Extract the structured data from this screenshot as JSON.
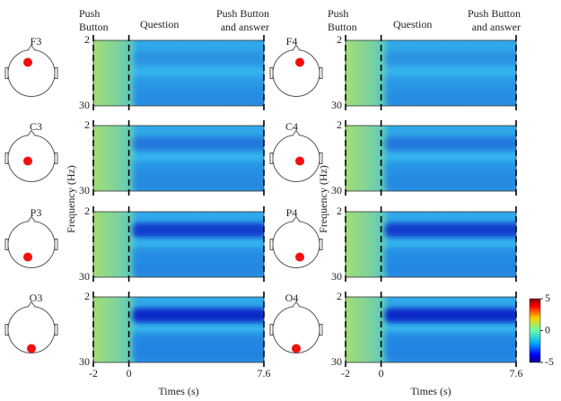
{
  "events": [
    {
      "label_lines": [
        "Push",
        "Button"
      ],
      "x": -2
    },
    {
      "label_lines": [
        "Question"
      ],
      "x": 0
    },
    {
      "label_lines": [
        "Push Button",
        "and answer"
      ],
      "x": 7.6
    }
  ],
  "ylabel": "Frequency (Hz)",
  "xlabel": "Times (s)",
  "colorbar": {
    "lim": [
      -5,
      5
    ],
    "ticks": [
      5,
      0,
      -5
    ]
  },
  "chart_data": [
    {
      "type": "heatmap",
      "channel": "F3",
      "xlim": [
        -2,
        7.6
      ],
      "ylim": [
        2,
        30
      ],
      "yticks": [
        2,
        30
      ],
      "y_inverted": true
    },
    {
      "type": "heatmap",
      "channel": "C3",
      "xlim": [
        -2,
        7.6
      ],
      "ylim": [
        2,
        30
      ],
      "yticks": [
        2,
        30
      ],
      "y_inverted": true
    },
    {
      "type": "heatmap",
      "channel": "P3",
      "xlim": [
        -2,
        7.6
      ],
      "ylim": [
        2,
        30
      ],
      "yticks": [
        2,
        30
      ],
      "y_inverted": true
    },
    {
      "type": "heatmap",
      "channel": "O3",
      "xlim": [
        -2,
        7.6
      ],
      "ylim": [
        2,
        30
      ],
      "yticks": [
        2,
        30
      ],
      "y_inverted": true,
      "xticks": [
        -2,
        0,
        7.6
      ]
    },
    {
      "type": "heatmap",
      "channel": "F4",
      "xlim": [
        -2,
        7.6
      ],
      "ylim": [
        2,
        30
      ],
      "yticks": [
        2,
        30
      ],
      "y_inverted": true
    },
    {
      "type": "heatmap",
      "channel": "C4",
      "xlim": [
        -2,
        7.6
      ],
      "ylim": [
        2,
        30
      ],
      "yticks": [
        2,
        30
      ],
      "y_inverted": true
    },
    {
      "type": "heatmap",
      "channel": "P4",
      "xlim": [
        -2,
        7.6
      ],
      "ylim": [
        2,
        30
      ],
      "yticks": [
        2,
        30
      ],
      "y_inverted": true
    },
    {
      "type": "heatmap",
      "channel": "O4",
      "xlim": [
        -2,
        7.6
      ],
      "ylim": [
        2,
        30
      ],
      "yticks": [
        2,
        30
      ],
      "y_inverted": true,
      "xticks": [
        -2,
        0,
        7.6
      ]
    }
  ]
}
